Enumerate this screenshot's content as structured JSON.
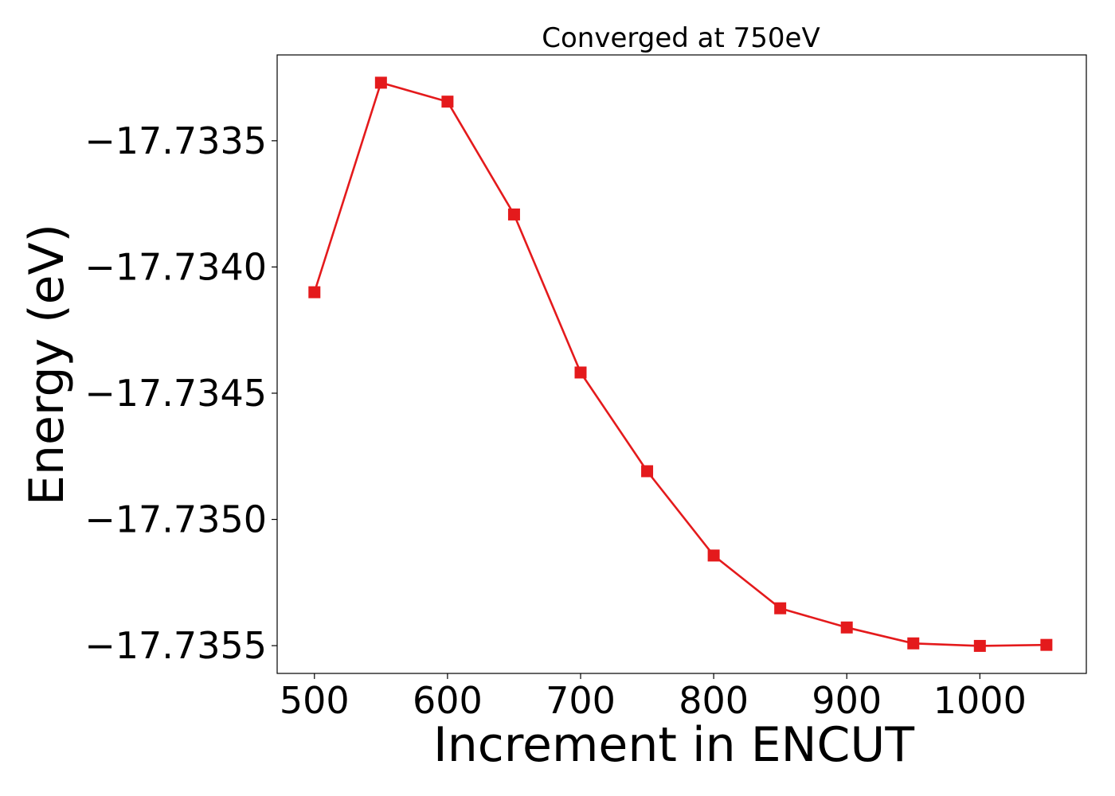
{
  "chart_data": {
    "type": "line",
    "title": "Converged at 750eV",
    "xlabel": "Increment in ENCUT",
    "ylabel": "Energy (eV)",
    "xlim": [
      472,
      1080
    ],
    "ylim": [
      -17.73561,
      -17.73316
    ],
    "xticks": [
      500,
      600,
      700,
      800,
      900,
      1000
    ],
    "xtick_labels": [
      "500",
      "600",
      "700",
      "800",
      "900",
      "1000"
    ],
    "yticks": [
      -17.7335,
      -17.734,
      -17.7345,
      -17.735,
      -17.7355
    ],
    "ytick_labels": [
      "−17.7335",
      "−17.7340",
      "−17.7345",
      "−17.7350",
      "−17.7355"
    ],
    "grid": false,
    "series": [
      {
        "color": "#e41a1c",
        "marker": "square",
        "x": [
          500,
          550,
          600,
          650,
          700,
          750,
          800,
          850,
          900,
          950,
          1000,
          1050
        ],
        "y": [
          -17.7341,
          -17.73327,
          -17.733345,
          -17.733792,
          -17.734418,
          -17.734809,
          -17.735143,
          -17.735352,
          -17.735428,
          -17.735491,
          -17.735501,
          -17.735497
        ]
      }
    ]
  }
}
